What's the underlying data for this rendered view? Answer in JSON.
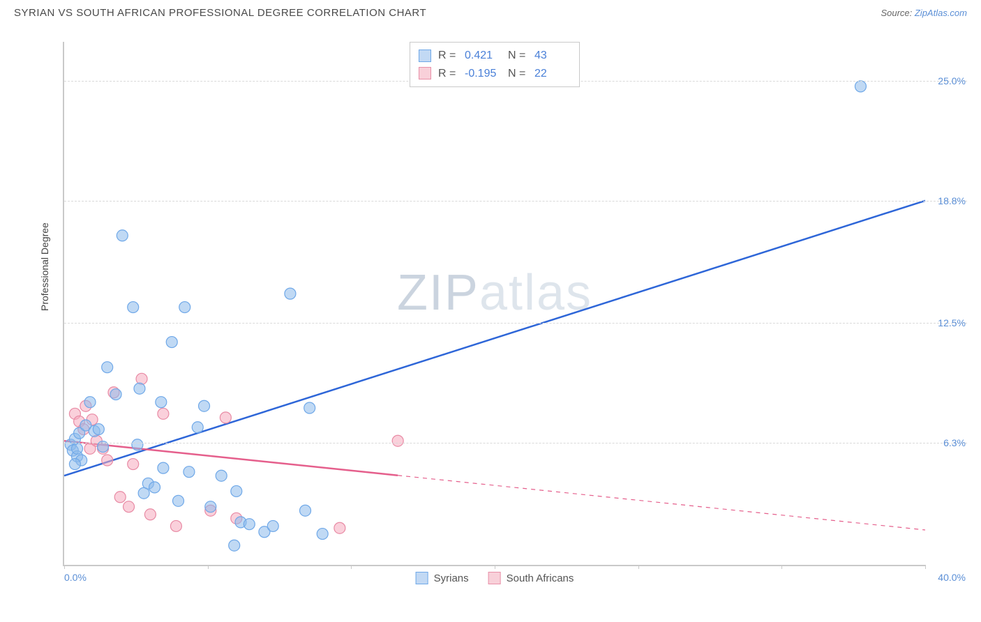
{
  "header": {
    "title": "SYRIAN VS SOUTH AFRICAN PROFESSIONAL DEGREE CORRELATION CHART",
    "source_prefix": "Source: ",
    "source_link": "ZipAtlas.com"
  },
  "watermark": {
    "zip": "ZIP",
    "atlas": "atlas"
  },
  "chart": {
    "type": "scatter",
    "y_axis_title": "Professional Degree",
    "xlim": [
      0.0,
      40.0
    ],
    "ylim": [
      0.0,
      27.0
    ],
    "x_left_label": "0.0%",
    "x_right_label": "40.0%",
    "x_ticks": [
      0.0,
      6.67,
      13.33,
      20.0,
      26.67,
      33.33,
      40.0
    ],
    "y_ticks": [
      {
        "value": 6.3,
        "label": "6.3%"
      },
      {
        "value": 12.5,
        "label": "12.5%"
      },
      {
        "value": 18.8,
        "label": "18.8%"
      },
      {
        "value": 25.0,
        "label": "25.0%"
      }
    ],
    "grid_color": "#d9d9d9",
    "axis_color": "#c9c9c9",
    "background_color": "#ffffff"
  },
  "top_legend": {
    "rows": [
      {
        "swatch": "blue",
        "r_label": "R =",
        "r_value": "0.421",
        "n_label": "N =",
        "n_value": "43"
      },
      {
        "swatch": "pink",
        "r_label": "R =",
        "r_value": "-0.195",
        "n_label": "N =",
        "n_value": "22"
      }
    ]
  },
  "bottom_legend": {
    "items": [
      {
        "swatch": "blue",
        "label": "Syrians"
      },
      {
        "swatch": "pink",
        "label": "South Africans"
      }
    ]
  },
  "series": {
    "blue": {
      "name": "Syrians",
      "marker_fill": "rgba(140,185,235,0.55)",
      "marker_stroke": "#6fa8e8",
      "marker_r": 8,
      "trend": {
        "x1": 0.0,
        "y1": 4.6,
        "x2": 40.0,
        "y2": 18.8,
        "color": "#2e66d8",
        "width": 2.5,
        "solid_until": 40.0
      },
      "points": [
        [
          0.3,
          6.2
        ],
        [
          0.4,
          5.9
        ],
        [
          0.5,
          6.5
        ],
        [
          0.6,
          5.6
        ],
        [
          0.7,
          6.8
        ],
        [
          0.6,
          6.0
        ],
        [
          0.8,
          5.4
        ],
        [
          0.5,
          5.2
        ],
        [
          1.0,
          7.2
        ],
        [
          1.2,
          8.4
        ],
        [
          1.4,
          6.9
        ],
        [
          1.6,
          7.0
        ],
        [
          1.8,
          6.1
        ],
        [
          2.0,
          10.2
        ],
        [
          2.4,
          8.8
        ],
        [
          2.7,
          17.0
        ],
        [
          3.2,
          13.3
        ],
        [
          3.4,
          6.2
        ],
        [
          3.5,
          9.1
        ],
        [
          3.7,
          3.7
        ],
        [
          3.9,
          4.2
        ],
        [
          4.2,
          4.0
        ],
        [
          4.5,
          8.4
        ],
        [
          4.6,
          5.0
        ],
        [
          5.0,
          11.5
        ],
        [
          5.3,
          3.3
        ],
        [
          5.6,
          13.3
        ],
        [
          5.8,
          4.8
        ],
        [
          6.2,
          7.1
        ],
        [
          6.5,
          8.2
        ],
        [
          6.8,
          3.0
        ],
        [
          7.3,
          4.6
        ],
        [
          7.9,
          1.0
        ],
        [
          8.0,
          3.8
        ],
        [
          8.2,
          2.2
        ],
        [
          8.6,
          2.1
        ],
        [
          9.3,
          1.7
        ],
        [
          9.7,
          2.0
        ],
        [
          10.5,
          14.0
        ],
        [
          11.2,
          2.8
        ],
        [
          11.4,
          8.1
        ],
        [
          12.0,
          1.6
        ],
        [
          37.0,
          24.7
        ]
      ]
    },
    "pink": {
      "name": "South Africans",
      "marker_fill": "rgba(245,170,190,0.55)",
      "marker_stroke": "#e88aa4",
      "marker_r": 8,
      "trend": {
        "x1": 0.0,
        "y1": 6.4,
        "x2": 40.0,
        "y2": 1.8,
        "color": "#e55f8c",
        "width": 2.5,
        "solid_until": 15.5
      },
      "points": [
        [
          0.5,
          7.8
        ],
        [
          0.7,
          7.4
        ],
        [
          0.9,
          7.0
        ],
        [
          1.0,
          8.2
        ],
        [
          1.2,
          6.0
        ],
        [
          1.3,
          7.5
        ],
        [
          1.5,
          6.4
        ],
        [
          1.8,
          6.0
        ],
        [
          2.0,
          5.4
        ],
        [
          2.3,
          8.9
        ],
        [
          2.6,
          3.5
        ],
        [
          3.0,
          3.0
        ],
        [
          3.2,
          5.2
        ],
        [
          3.6,
          9.6
        ],
        [
          4.0,
          2.6
        ],
        [
          4.6,
          7.8
        ],
        [
          5.2,
          2.0
        ],
        [
          6.8,
          2.8
        ],
        [
          7.5,
          7.6
        ],
        [
          8.0,
          2.4
        ],
        [
          12.8,
          1.9
        ],
        [
          15.5,
          6.4
        ]
      ]
    }
  }
}
